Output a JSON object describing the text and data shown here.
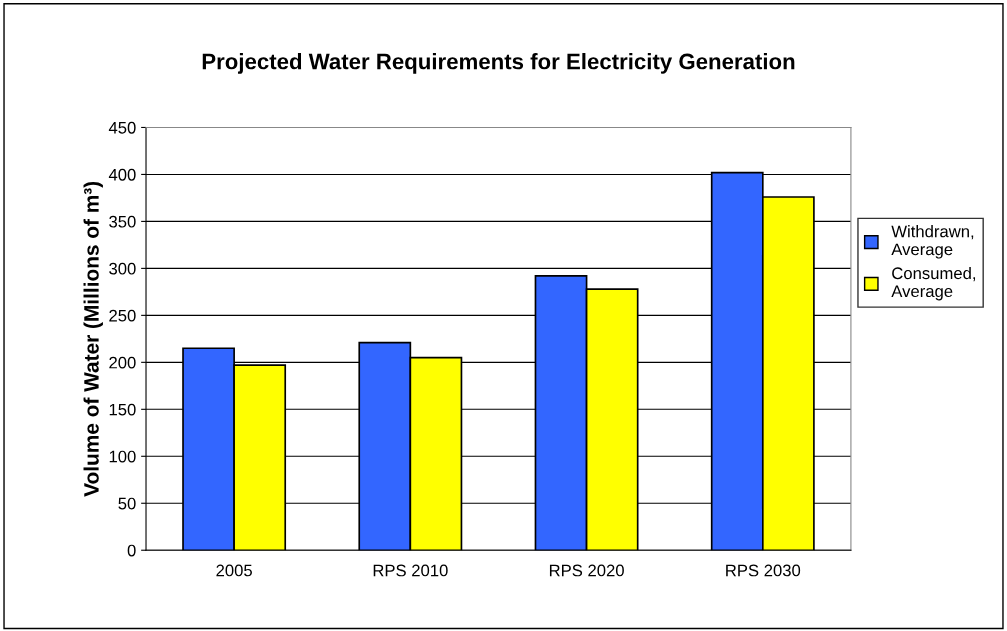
{
  "chart_data": {
    "type": "bar",
    "title": "Projected Water Requirements for Electricity Generation",
    "ylabel": "Volume of Water (Millions of m³)",
    "categories": [
      "2005",
      "RPS 2010",
      "RPS 2020",
      "RPS 2030"
    ],
    "series": [
      {
        "name": "Withdrawn,\nAverage",
        "color": "#3366ff",
        "values": [
          215,
          221,
          292,
          402
        ]
      },
      {
        "name": "Consumed,\nAverage",
        "color": "#ffff00",
        "values": [
          197,
          205,
          278,
          376
        ]
      }
    ],
    "ylim": [
      0,
      450
    ],
    "yticks": [
      0,
      50,
      100,
      150,
      200,
      250,
      300,
      350,
      400,
      450
    ],
    "grid": "y",
    "legend": "right"
  }
}
